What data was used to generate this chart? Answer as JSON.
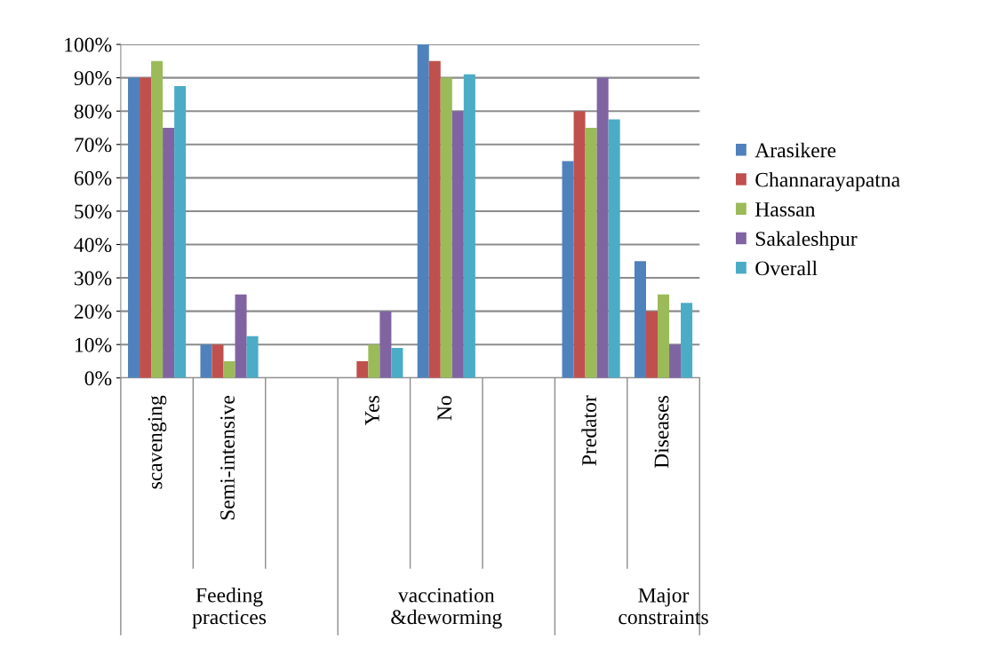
{
  "chart_data": {
    "type": "bar",
    "categories": [
      "scavenging",
      "Semi-intensive",
      null,
      "Yes",
      "No",
      null,
      "Predator",
      "Diseases"
    ],
    "series": [
      {
        "name": "Arasikere",
        "color": "#4f81bd",
        "values": [
          90,
          10,
          null,
          0,
          100,
          null,
          65,
          35
        ]
      },
      {
        "name": "Channarayapatna",
        "color": "#c0504d",
        "values": [
          90,
          10,
          null,
          5,
          95,
          null,
          80,
          20
        ]
      },
      {
        "name": "Hassan",
        "color": "#9bbb59",
        "values": [
          95,
          5,
          null,
          10,
          90,
          null,
          75,
          25
        ]
      },
      {
        "name": "Sakaleshpur",
        "color": "#8064a2",
        "values": [
          75,
          25,
          null,
          20,
          80,
          null,
          90,
          10
        ]
      },
      {
        "name": "Overall",
        "color": "#4bacc6",
        "values": [
          87.5,
          12.5,
          null,
          9,
          91,
          null,
          77.5,
          22.5
        ]
      }
    ],
    "ylim": [
      0,
      100
    ],
    "yticks": [
      {
        "value": 0,
        "label": "0%"
      },
      {
        "value": 10,
        "label": "10%"
      },
      {
        "value": 20,
        "label": "20%"
      },
      {
        "value": 30,
        "label": "30%"
      },
      {
        "value": 40,
        "label": "40%"
      },
      {
        "value": 50,
        "label": "50%"
      },
      {
        "value": 60,
        "label": "60%"
      },
      {
        "value": 70,
        "label": "70%"
      },
      {
        "value": 80,
        "label": "80%"
      },
      {
        "value": 90,
        "label": "90%"
      },
      {
        "value": 100,
        "label": "100%"
      }
    ],
    "grid": "y",
    "legend": "right",
    "annotations": [
      "Feeding\npractices",
      "vaccination\n&deworming",
      "Major\nconstraints"
    ]
  }
}
